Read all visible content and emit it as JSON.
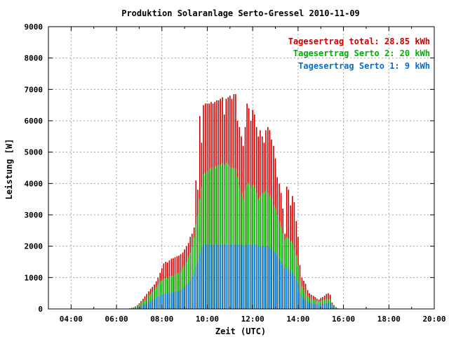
{
  "chart_data": {
    "type": "bar",
    "title": "Produktion Solaranlage Serto-Gressel 2010-11-09",
    "xlabel": "Zeit (UTC)",
    "ylabel": "Leistung [W]",
    "xlim": [
      3.0,
      20.0
    ],
    "ylim": [
      0,
      9000
    ],
    "xticks": [
      "04:00",
      "06:00",
      "08:00",
      "10:00",
      "12:00",
      "14:00",
      "16:00",
      "18:00",
      "20:00"
    ],
    "yticks": [
      "0",
      "1000",
      "2000",
      "3000",
      "4000",
      "5000",
      "6000",
      "7000",
      "8000",
      "9000"
    ],
    "grid": true,
    "legend_position": "top-right",
    "colors": {
      "total": "#cc0000",
      "serto2": "#00b000",
      "serto1": "#0070d0"
    },
    "legend": [
      {
        "name": "Tagesertrag total: 28.85 kWh",
        "color": "#cc0000"
      },
      {
        "name": "Tagesertrag Serto 2: 20 kWh",
        "color": "#00b000"
      },
      {
        "name": "Tagesertrag Serto 1: 9 kWh",
        "color": "#0070d0"
      }
    ],
    "x_hours": [
      6.5,
      6.58,
      6.67,
      6.75,
      6.83,
      6.92,
      7.0,
      7.08,
      7.17,
      7.25,
      7.33,
      7.42,
      7.5,
      7.58,
      7.67,
      7.75,
      7.83,
      7.92,
      8.0,
      8.08,
      8.17,
      8.25,
      8.33,
      8.42,
      8.5,
      8.58,
      8.67,
      8.75,
      8.83,
      8.92,
      9.0,
      9.08,
      9.17,
      9.25,
      9.33,
      9.42,
      9.5,
      9.58,
      9.67,
      9.75,
      9.83,
      9.92,
      10.0,
      10.08,
      10.17,
      10.25,
      10.33,
      10.42,
      10.5,
      10.58,
      10.67,
      10.75,
      10.83,
      10.92,
      11.0,
      11.08,
      11.17,
      11.25,
      11.33,
      11.42,
      11.5,
      11.58,
      11.67,
      11.75,
      11.83,
      11.92,
      12.0,
      12.08,
      12.17,
      12.25,
      12.33,
      12.42,
      12.5,
      12.58,
      12.67,
      12.75,
      12.83,
      12.92,
      13.0,
      13.08,
      13.17,
      13.25,
      13.33,
      13.42,
      13.5,
      13.58,
      13.67,
      13.75,
      13.83,
      13.92,
      14.0,
      14.08,
      14.17,
      14.25,
      14.33,
      14.42,
      14.5,
      14.58,
      14.67,
      14.75,
      14.83,
      14.92,
      15.0,
      15.08,
      15.17,
      15.25,
      15.33,
      15.42,
      15.5,
      15.58,
      15.67,
      15.75
    ],
    "series": [
      {
        "name": "Tagesertrag total: 28.85 kWh",
        "key": "total",
        "values": [
          10,
          20,
          35,
          50,
          80,
          120,
          180,
          250,
          320,
          400,
          480,
          560,
          640,
          700,
          780,
          880,
          1000,
          1150,
          1300,
          1450,
          1500,
          1480,
          1550,
          1600,
          1620,
          1650,
          1680,
          1700,
          1750,
          1800,
          1900,
          2000,
          2100,
          2300,
          2400,
          2600,
          4100,
          3800,
          6150,
          5300,
          6500,
          6550,
          6550,
          6550,
          6600,
          6550,
          6600,
          6650,
          6650,
          6700,
          6750,
          6200,
          6700,
          6750,
          6800,
          6700,
          6850,
          6850,
          6000,
          5800,
          5500,
          5200,
          5800,
          6550,
          6400,
          6000,
          6350,
          6200,
          5800,
          5500,
          5700,
          5500,
          5300,
          5700,
          5800,
          5700,
          5400,
          5200,
          4800,
          4200,
          4000,
          3700,
          3200,
          2400,
          3900,
          3800,
          3300,
          3600,
          3400,
          2800,
          2300,
          1400,
          1000,
          900,
          800,
          600,
          500,
          450,
          420,
          380,
          330,
          300,
          350,
          380,
          420,
          480,
          500,
          450,
          200,
          120,
          60,
          20
        ]
      },
      {
        "name": "Tagesertrag Serto 2: 20 kWh",
        "key": "serto2",
        "values": [
          8,
          15,
          25,
          40,
          60,
          90,
          130,
          180,
          230,
          290,
          350,
          420,
          480,
          550,
          620,
          700,
          780,
          850,
          900,
          950,
          980,
          1000,
          1020,
          1050,
          1080,
          1100,
          1120,
          1150,
          1200,
          1300,
          1400,
          1500,
          1650,
          1800,
          2000,
          2300,
          2700,
          3000,
          3500,
          3900,
          4300,
          4350,
          4400,
          4450,
          4500,
          4500,
          4550,
          4550,
          4600,
          4600,
          4650,
          4600,
          4650,
          4600,
          4550,
          4500,
          4500,
          4450,
          4200,
          3900,
          3700,
          3500,
          3800,
          4000,
          4000,
          3900,
          3950,
          3850,
          3700,
          3500,
          3600,
          3700,
          3700,
          3800,
          3700,
          3600,
          3500,
          3300,
          3200,
          3000,
          2800,
          2600,
          2400,
          2200,
          2300,
          2250,
          2150,
          2100,
          1900,
          1700,
          1400,
          900,
          700,
          600,
          500,
          400,
          350,
          320,
          300,
          280,
          260,
          240,
          260,
          280,
          300,
          320,
          330,
          300,
          150,
          90,
          45,
          15
        ]
      },
      {
        "name": "Tagesertrag Serto 1: 9 kWh",
        "key": "serto1",
        "values": [
          4,
          8,
          12,
          20,
          30,
          45,
          65,
          90,
          115,
          145,
          175,
          210,
          240,
          275,
          310,
          350,
          390,
          425,
          450,
          475,
          490,
          500,
          510,
          525,
          540,
          550,
          560,
          575,
          600,
          650,
          700,
          750,
          820,
          900,
          1000,
          1150,
          1350,
          1500,
          1750,
          1950,
          2050,
          2050,
          2050,
          2050,
          2050,
          2050,
          2050,
          2050,
          2050,
          2050,
          2050,
          2050,
          2050,
          2050,
          2050,
          2050,
          2050,
          2050,
          2050,
          2050,
          2050,
          2000,
          2050,
          2050,
          2050,
          2050,
          2050,
          2050,
          2050,
          2000,
          2000,
          2000,
          2000,
          2000,
          2000,
          1950,
          1900,
          1850,
          1800,
          1700,
          1600,
          1500,
          1400,
          1300,
          1300,
          1250,
          1200,
          1150,
          1050,
          950,
          800,
          500,
          400,
          340,
          280,
          230,
          200,
          185,
          170,
          160,
          150,
          140,
          150,
          160,
          170,
          180,
          185,
          170,
          90,
          50,
          25,
          8
        ]
      }
    ]
  }
}
